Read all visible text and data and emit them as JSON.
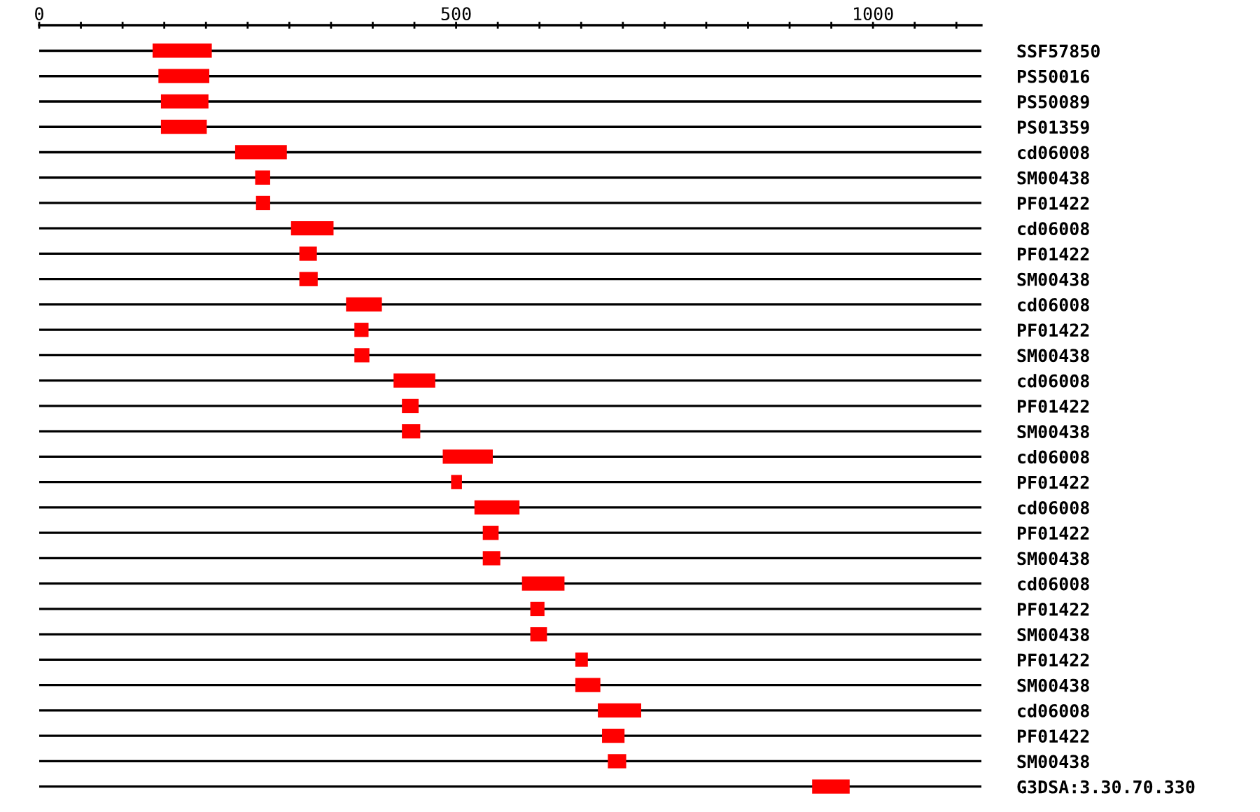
{
  "chart_data": {
    "type": "bar",
    "orientation": "horizontal",
    "categories": [
      "SSF57850",
      "PS50016",
      "PS50089",
      "PS01359",
      "cd06008",
      "SM00438",
      "PF01422",
      "cd06008",
      "PF01422",
      "SM00438",
      "cd06008",
      "PF01422",
      "SM00438",
      "cd06008",
      "PF01422",
      "SM00438",
      "cd06008",
      "PF01422",
      "cd06008",
      "PF01422",
      "SM00438",
      "cd06008",
      "PF01422",
      "SM00438",
      "PF01422",
      "SM00438",
      "cd06008",
      "PF01422",
      "SM00438",
      "G3DSA:3.30.70.330"
    ],
    "base": [
      136,
      143,
      146,
      146,
      235,
      259,
      260,
      302,
      312,
      312,
      368,
      378,
      378,
      425,
      435,
      435,
      484,
      494,
      522,
      532,
      532,
      579,
      589,
      589,
      643,
      643,
      670,
      675,
      682,
      927
    ],
    "values": [
      71,
      61,
      57,
      55,
      62,
      18,
      17,
      51,
      21,
      22,
      43,
      17,
      18,
      50,
      20,
      22,
      60,
      13,
      54,
      19,
      21,
      51,
      17,
      20,
      15,
      30,
      52,
      27,
      22,
      45
    ],
    "color": "#ff0000",
    "xlim": [
      0,
      1130
    ],
    "xticks": [
      0,
      {
        "value": 50,
        "label": null
      },
      {
        "value": 100,
        "label": null
      },
      {
        "value": 150,
        "label": null
      },
      {
        "value": 200,
        "label": null
      },
      {
        "value": 250,
        "label": null
      },
      {
        "value": 300,
        "label": null
      },
      {
        "value": 350,
        "label": null
      },
      {
        "value": 400,
        "label": null
      },
      {
        "value": 450,
        "label": null
      },
      500,
      {
        "value": 550,
        "label": null
      },
      {
        "value": 600,
        "label": null
      },
      {
        "value": 650,
        "label": null
      },
      {
        "value": 700,
        "label": null
      },
      {
        "value": 750,
        "label": null
      },
      {
        "value": 800,
        "label": null
      },
      {
        "value": 850,
        "label": null
      },
      {
        "value": 900,
        "label": null
      },
      {
        "value": 950,
        "label": null
      },
      1000,
      {
        "value": 1050,
        "label": null
      },
      {
        "value": 1100,
        "label": null
      }
    ],
    "grid": "y"
  }
}
